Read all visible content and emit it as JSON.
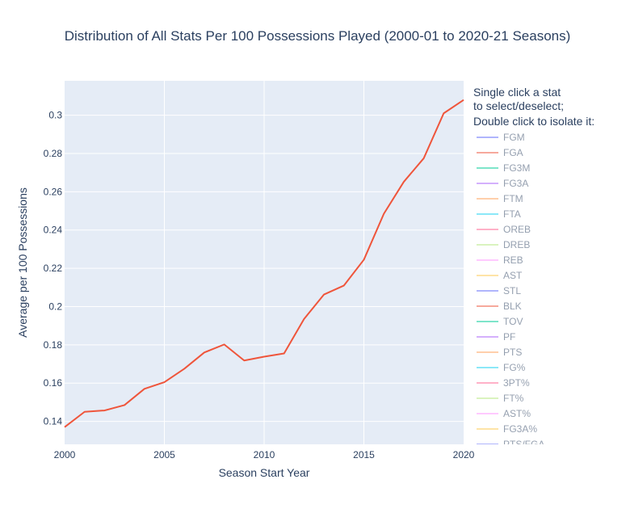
{
  "chart_data": {
    "type": "line",
    "title": "Distribution of All Stats Per 100 Possessions Played (2000-01 to 2020-21 Seasons)",
    "xlabel": "Season Start Year",
    "ylabel": "Average per 100 Possessions",
    "xlim": [
      2000,
      2020
    ],
    "ylim": [
      0.128,
      0.318
    ],
    "xticks": [
      2000,
      2005,
      2010,
      2015,
      2020
    ],
    "xtick_labels": [
      "2000",
      "2005",
      "2010",
      "2015",
      "2020"
    ],
    "yticks": [
      0.14,
      0.16,
      0.18,
      0.2,
      0.22,
      0.24,
      0.26,
      0.28,
      0.3
    ],
    "ytick_labels": [
      "0.14",
      "0.16",
      "0.18",
      "0.2",
      "0.22",
      "0.24",
      "0.26",
      "0.28",
      "0.3"
    ],
    "grid": true,
    "legend_position": "right",
    "legend_title": [
      "Single click a stat",
      "to select/deselect;",
      "Double click to isolate it:"
    ],
    "series": [
      {
        "name": "FG3A%",
        "color": "#EF553B",
        "visible": true,
        "x": [
          2000,
          2001,
          2002,
          2003,
          2004,
          2005,
          2006,
          2007,
          2008,
          2009,
          2010,
          2011,
          2012,
          2013,
          2014,
          2015,
          2016,
          2017,
          2018,
          2019,
          2020
        ],
        "y": [
          0.137,
          0.145,
          0.1457,
          0.1485,
          0.157,
          0.1605,
          0.1675,
          0.176,
          0.1802,
          0.1718,
          0.1738,
          0.1755,
          0.1935,
          0.2063,
          0.211,
          0.2245,
          0.2485,
          0.2652,
          0.2775,
          0.301,
          0.308
        ]
      }
    ],
    "legend_items": [
      {
        "name": "FGM",
        "color": "#636EFA"
      },
      {
        "name": "FGA",
        "color": "#EF553B"
      },
      {
        "name": "FG3M",
        "color": "#00CC96"
      },
      {
        "name": "FG3A",
        "color": "#AB63FA"
      },
      {
        "name": "FTM",
        "color": "#FFA15A"
      },
      {
        "name": "FTA",
        "color": "#19D3F3"
      },
      {
        "name": "OREB",
        "color": "#FF6692"
      },
      {
        "name": "DREB",
        "color": "#B6E880"
      },
      {
        "name": "REB",
        "color": "#FF97FF"
      },
      {
        "name": "AST",
        "color": "#FECB52"
      },
      {
        "name": "STL",
        "color": "#636EFA"
      },
      {
        "name": "BLK",
        "color": "#EF553B"
      },
      {
        "name": "TOV",
        "color": "#00CC96"
      },
      {
        "name": "PF",
        "color": "#AB63FA"
      },
      {
        "name": "PTS",
        "color": "#FFA15A"
      },
      {
        "name": "FG%",
        "color": "#19D3F3"
      },
      {
        "name": "3PT%",
        "color": "#FF6692"
      },
      {
        "name": "FT%",
        "color": "#B6E880"
      },
      {
        "name": "AST%",
        "color": "#FF97FF"
      },
      {
        "name": "FG3A%",
        "color": "#FECB52"
      },
      {
        "name": "PTS/FGA",
        "color": "#636EFA"
      }
    ],
    "colors": {
      "plot_background": "#E5ECF6",
      "grid": "#ffffff",
      "text": "#2a3f5f",
      "legend_text_dimmed": "#2a3f5f"
    }
  }
}
